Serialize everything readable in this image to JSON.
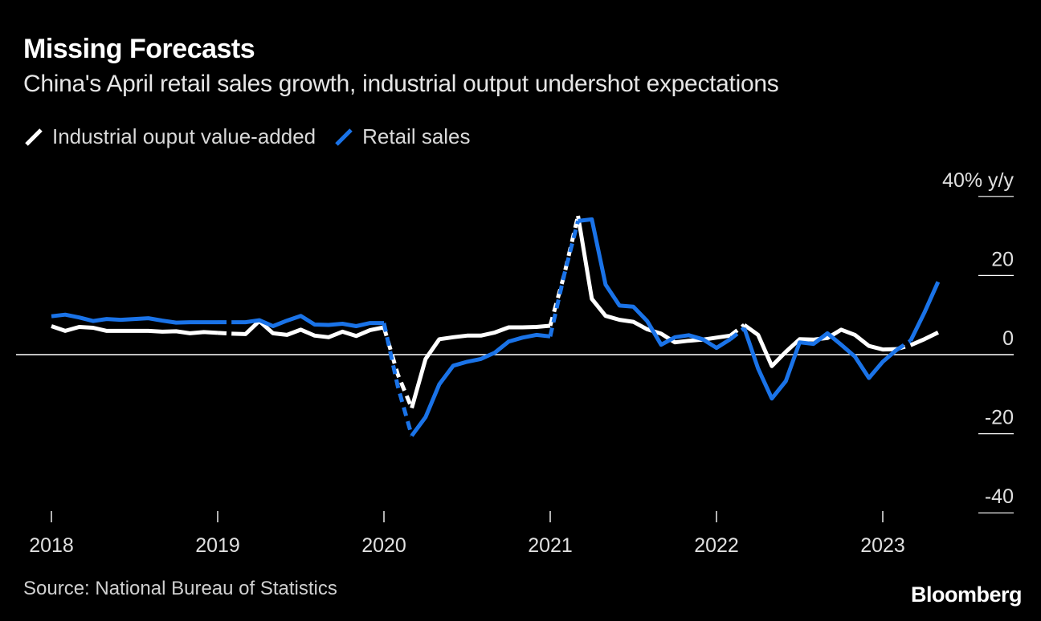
{
  "chart_data": {
    "type": "line",
    "title": "Missing Forecasts",
    "subtitle": "China's April retail sales growth, industrial output undershot expectations",
    "y_unit_label": "40% y/y",
    "y_ticks": [
      {
        "value": 20,
        "label": "20"
      },
      {
        "value": 0,
        "label": "0"
      },
      {
        "value": -20,
        "label": "-20"
      },
      {
        "value": -40,
        "label": "-40"
      }
    ],
    "ylim": [
      -40,
      40
    ],
    "x_ticks": [
      {
        "value": 2018.0,
        "label": "2018"
      },
      {
        "value": 2019.0,
        "label": "2019"
      },
      {
        "value": 2020.0,
        "label": "2020"
      },
      {
        "value": 2021.0,
        "label": "2021"
      },
      {
        "value": 2022.0,
        "label": "2022"
      },
      {
        "value": 2023.0,
        "label": "2023"
      }
    ],
    "xlim": [
      2017.92,
      2023.42
    ],
    "legend_position": "top-left",
    "series": [
      {
        "name": "Industrial ouput value-added",
        "color": "#ffffff",
        "segments": [
          {
            "style": "solid",
            "points": [
              [
                2018.0,
                7.2
              ],
              [
                2018.083,
                6.0
              ],
              [
                2018.167,
                7.0
              ],
              [
                2018.25,
                6.8
              ],
              [
                2018.333,
                6.0
              ],
              [
                2018.417,
                6.0
              ],
              [
                2018.5,
                6.0
              ],
              [
                2018.583,
                6.0
              ],
              [
                2018.667,
                5.8
              ],
              [
                2018.75,
                5.9
              ],
              [
                2018.833,
                5.4
              ],
              [
                2018.917,
                5.7
              ],
              [
                2019.0,
                5.5
              ]
            ]
          },
          {
            "style": "dashed",
            "points": [
              [
                2019.0,
                5.5
              ],
              [
                2019.083,
                5.3
              ]
            ]
          },
          {
            "style": "solid",
            "points": [
              [
                2019.083,
                5.3
              ],
              [
                2019.167,
                5.2
              ],
              [
                2019.25,
                8.5
              ],
              [
                2019.333,
                5.4
              ],
              [
                2019.417,
                5.0
              ],
              [
                2019.5,
                6.3
              ],
              [
                2019.583,
                4.8
              ],
              [
                2019.667,
                4.4
              ],
              [
                2019.75,
                5.8
              ],
              [
                2019.833,
                4.7
              ],
              [
                2019.917,
                6.2
              ],
              [
                2020.0,
                6.9
              ]
            ]
          },
          {
            "style": "dashed",
            "points": [
              [
                2020.0,
                6.9
              ],
              [
                2020.083,
                -5.0
              ],
              [
                2020.167,
                -13.5
              ]
            ]
          },
          {
            "style": "solid",
            "points": [
              [
                2020.167,
                -13.5
              ],
              [
                2020.25,
                -1.1
              ],
              [
                2020.333,
                3.9
              ],
              [
                2020.417,
                4.4
              ],
              [
                2020.5,
                4.8
              ],
              [
                2020.583,
                4.8
              ],
              [
                2020.667,
                5.6
              ],
              [
                2020.75,
                6.9
              ],
              [
                2020.833,
                6.9
              ],
              [
                2020.917,
                7.0
              ],
              [
                2021.0,
                7.3
              ]
            ]
          },
          {
            "style": "dashed",
            "points": [
              [
                2021.0,
                7.3
              ],
              [
                2021.083,
                20.0
              ],
              [
                2021.167,
                35.1
              ]
            ]
          },
          {
            "style": "solid",
            "points": [
              [
                2021.167,
                35.1
              ],
              [
                2021.25,
                14.1
              ],
              [
                2021.333,
                9.8
              ],
              [
                2021.417,
                8.8
              ],
              [
                2021.5,
                8.3
              ],
              [
                2021.583,
                6.4
              ],
              [
                2021.667,
                5.3
              ],
              [
                2021.75,
                3.1
              ],
              [
                2021.833,
                3.5
              ],
              [
                2021.917,
                3.8
              ],
              [
                2022.0,
                4.3
              ],
              [
                2022.083,
                4.8
              ]
            ]
          },
          {
            "style": "dashed",
            "points": [
              [
                2022.083,
                4.8
              ],
              [
                2022.167,
                7.5
              ]
            ]
          },
          {
            "style": "solid",
            "points": [
              [
                2022.167,
                7.5
              ],
              [
                2022.25,
                5.0
              ],
              [
                2022.333,
                -2.9
              ],
              [
                2022.417,
                0.7
              ],
              [
                2022.5,
                3.9
              ],
              [
                2022.583,
                3.8
              ],
              [
                2022.667,
                4.2
              ],
              [
                2022.75,
                6.3
              ],
              [
                2022.833,
                5.0
              ],
              [
                2022.917,
                2.2
              ],
              [
                2023.0,
                1.3
              ],
              [
                2023.083,
                1.4
              ]
            ]
          },
          {
            "style": "dashed",
            "points": [
              [
                2023.083,
                1.4
              ],
              [
                2023.167,
                2.4
              ]
            ]
          },
          {
            "style": "solid",
            "points": [
              [
                2023.167,
                2.4
              ],
              [
                2023.25,
                3.9
              ],
              [
                2023.333,
                5.6
              ]
            ]
          }
        ]
      },
      {
        "name": "Retail sales",
        "color": "#1a73e8",
        "segments": [
          {
            "style": "solid",
            "points": [
              [
                2018.0,
                9.7
              ],
              [
                2018.083,
                10.1
              ],
              [
                2018.167,
                9.4
              ],
              [
                2018.25,
                8.5
              ],
              [
                2018.333,
                9.0
              ],
              [
                2018.417,
                8.8
              ],
              [
                2018.5,
                9.0
              ],
              [
                2018.583,
                9.2
              ],
              [
                2018.667,
                8.6
              ],
              [
                2018.75,
                8.1
              ],
              [
                2018.833,
                8.2
              ],
              [
                2018.917,
                8.2
              ],
              [
                2019.0,
                8.2
              ]
            ]
          },
          {
            "style": "dashed",
            "points": [
              [
                2019.0,
                8.2
              ],
              [
                2019.083,
                8.2
              ]
            ]
          },
          {
            "style": "solid",
            "points": [
              [
                2019.083,
                8.2
              ],
              [
                2019.167,
                8.2
              ],
              [
                2019.25,
                8.7
              ],
              [
                2019.333,
                7.2
              ],
              [
                2019.417,
                8.6
              ],
              [
                2019.5,
                9.8
              ],
              [
                2019.583,
                7.6
              ],
              [
                2019.667,
                7.5
              ],
              [
                2019.75,
                7.8
              ],
              [
                2019.833,
                7.2
              ],
              [
                2019.917,
                8.0
              ],
              [
                2020.0,
                8.0
              ]
            ]
          },
          {
            "style": "dashed",
            "points": [
              [
                2020.0,
                8.0
              ],
              [
                2020.083,
                -8.0
              ],
              [
                2020.167,
                -20.5
              ]
            ]
          },
          {
            "style": "solid",
            "points": [
              [
                2020.167,
                -20.5
              ],
              [
                2020.25,
                -15.8
              ],
              [
                2020.333,
                -7.5
              ],
              [
                2020.417,
                -2.8
              ],
              [
                2020.5,
                -1.8
              ],
              [
                2020.583,
                -1.1
              ],
              [
                2020.667,
                0.5
              ],
              [
                2020.75,
                3.3
              ],
              [
                2020.833,
                4.3
              ],
              [
                2020.917,
                5.0
              ],
              [
                2021.0,
                4.6
              ]
            ]
          },
          {
            "style": "dashed",
            "points": [
              [
                2021.0,
                4.6
              ],
              [
                2021.083,
                20.0
              ],
              [
                2021.167,
                33.8
              ]
            ]
          },
          {
            "style": "solid",
            "points": [
              [
                2021.167,
                33.8
              ],
              [
                2021.25,
                34.2
              ],
              [
                2021.333,
                17.7
              ],
              [
                2021.417,
                12.4
              ],
              [
                2021.5,
                12.1
              ],
              [
                2021.583,
                8.5
              ],
              [
                2021.667,
                2.5
              ],
              [
                2021.75,
                4.4
              ],
              [
                2021.833,
                4.9
              ],
              [
                2021.917,
                3.9
              ],
              [
                2022.0,
                1.7
              ],
              [
                2022.083,
                3.9
              ]
            ]
          },
          {
            "style": "dashed",
            "points": [
              [
                2022.083,
                3.9
              ],
              [
                2022.167,
                6.7
              ]
            ]
          },
          {
            "style": "solid",
            "points": [
              [
                2022.167,
                6.7
              ],
              [
                2022.25,
                -3.5
              ],
              [
                2022.333,
                -11.1
              ],
              [
                2022.417,
                -6.7
              ],
              [
                2022.5,
                3.1
              ],
              [
                2022.583,
                2.7
              ],
              [
                2022.667,
                5.4
              ],
              [
                2022.75,
                2.5
              ],
              [
                2022.833,
                -0.5
              ],
              [
                2022.917,
                -5.9
              ],
              [
                2023.0,
                -1.8
              ],
              [
                2023.083,
                1.2
              ]
            ]
          },
          {
            "style": "dashed",
            "points": [
              [
                2023.083,
                1.2
              ],
              [
                2023.167,
                3.5
              ]
            ]
          },
          {
            "style": "solid",
            "points": [
              [
                2023.167,
                3.5
              ],
              [
                2023.25,
                10.6
              ],
              [
                2023.333,
                18.4
              ]
            ]
          }
        ]
      }
    ]
  },
  "source": "Source: National Bureau of Statistics",
  "brand": "Bloomberg"
}
